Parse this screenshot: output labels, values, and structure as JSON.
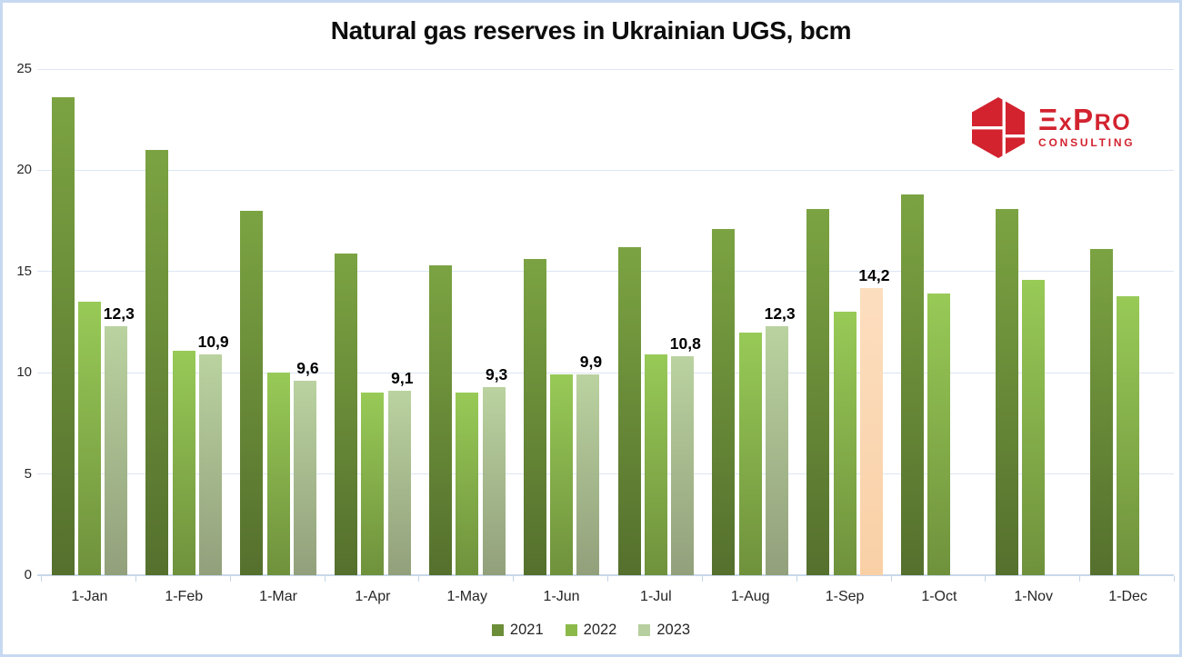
{
  "title": "Natural gas reserves in Ukrainian UGS, bcm",
  "logo": {
    "mark": [
      "Ξ",
      "x",
      "P",
      "RO"
    ],
    "name": "ExPro",
    "subtitle": "CONSULTING",
    "color": "#d2232f"
  },
  "colors": {
    "frame_border": "#c6d9f1",
    "background": "#ffffff",
    "gridline": "#dce6f3",
    "axis_line": "#c9d8ea",
    "text": "#262626"
  },
  "chart_data": {
    "type": "bar",
    "title": "Natural gas reserves in Ukrainian UGS, bcm",
    "xlabel": "",
    "ylabel": "",
    "ylim": [
      0,
      25
    ],
    "yticks": [
      0,
      5,
      10,
      15,
      20,
      25
    ],
    "grid": true,
    "legend_position": "bottom",
    "categories": [
      "1-Jan",
      "1-Feb",
      "1-Mar",
      "1-Apr",
      "1-May",
      "1-Jun",
      "1-Jul",
      "1-Aug",
      "1-Sep",
      "1-Oct",
      "1-Nov",
      "1-Dec"
    ],
    "series": [
      {
        "name": "2021",
        "legend_color": "#6d8e39",
        "bar_top": "#7ba342",
        "bar_bottom": "#55702d",
        "values": [
          23.6,
          21.0,
          18.0,
          15.9,
          15.3,
          15.6,
          16.2,
          17.1,
          18.1,
          18.8,
          18.1,
          16.1
        ]
      },
      {
        "name": "2022",
        "legend_color": "#8cba4a",
        "bar_top": "#98ca57",
        "bar_bottom": "#6f913c",
        "values": [
          13.5,
          11.1,
          10.0,
          9.0,
          9.0,
          9.9,
          10.9,
          12.0,
          13.0,
          13.9,
          14.6,
          13.8
        ]
      },
      {
        "name": "2023",
        "legend_color": "#b7cf9e",
        "bar_top": "#bad2a0",
        "bar_bottom": "#92a07b",
        "values": [
          12.3,
          10.9,
          9.6,
          9.1,
          9.3,
          9.9,
          10.8,
          12.3,
          14.2,
          null,
          null,
          null
        ],
        "data_labels": [
          "12,3",
          "10,9",
          "9,6",
          "9,1",
          "9,3",
          "9,9",
          "10,8",
          "12,3",
          "14,2",
          null,
          null,
          null
        ]
      }
    ],
    "highlight": {
      "series": "2023",
      "category": "1-Sep",
      "bar_top": "#fcdebf",
      "bar_bottom": "#f9d0a6"
    }
  }
}
